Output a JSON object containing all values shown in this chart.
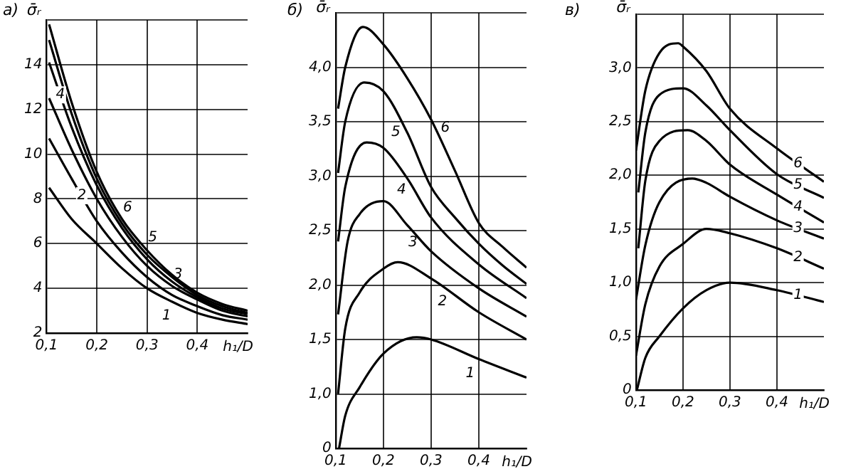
{
  "chart_data": [
    {
      "type": "line",
      "title": "а)",
      "ylabel": "σ̄ᵣ",
      "xlabel": "h₁/D",
      "grid": true,
      "legend": false,
      "marker": "none",
      "line_style": "solid",
      "x": [
        0.105,
        0.15,
        0.2,
        0.25,
        0.3,
        0.35,
        0.4,
        0.45,
        0.5
      ],
      "xlim": [
        0.1,
        0.5
      ],
      "xticks": [
        {
          "value": 0.1,
          "label": "0,1"
        },
        {
          "value": 0.2,
          "label": "0,2"
        },
        {
          "value": 0.3,
          "label": "0,3"
        },
        {
          "value": 0.4,
          "label": "0,4"
        }
      ],
      "ylim": [
        2,
        16
      ],
      "yticks": [
        2,
        4,
        6,
        8,
        10,
        12,
        14,
        {
          "value": 16,
          "label": null
        }
      ],
      "series": [
        {
          "name": "1",
          "color": "#000000",
          "values": [
            8.5,
            7.1,
            6.0,
            4.9,
            4.0,
            3.4,
            2.9,
            2.6,
            2.4
          ]
        },
        {
          "name": "2",
          "color": "#000000",
          "values": [
            10.7,
            8.9,
            7.0,
            5.6,
            4.5,
            3.7,
            3.2,
            2.8,
            2.6
          ]
        },
        {
          "name": "3",
          "color": "#000000",
          "values": [
            12.5,
            10.2,
            8.0,
            6.3,
            5.0,
            4.1,
            3.5,
            3.0,
            2.75
          ]
        },
        {
          "name": "4",
          "color": "#000000",
          "values": [
            14.1,
            11.2,
            8.6,
            6.7,
            5.3,
            4.3,
            3.6,
            3.1,
            2.85
          ]
        },
        {
          "name": "5",
          "color": "#000000",
          "values": [
            15.1,
            11.8,
            8.9,
            6.9,
            5.5,
            4.5,
            3.7,
            3.2,
            2.9
          ]
        },
        {
          "name": "6",
          "color": "#000000",
          "values": [
            15.8,
            12.3,
            9.2,
            7.1,
            5.7,
            4.6,
            3.8,
            3.3,
            3.0
          ]
        }
      ]
    },
    {
      "type": "line",
      "title": "б)",
      "ylabel": "σ̄ᵣ",
      "xlabel": "h₁/D",
      "grid": true,
      "legend": false,
      "marker": "none",
      "line_style": "solid",
      "xlim": [
        0.1,
        0.5
      ],
      "xticks": [
        {
          "value": 0.1,
          "label": "0,1"
        },
        {
          "value": 0.2,
          "label": "0,2"
        },
        {
          "value": 0.3,
          "label": "0,3"
        },
        {
          "value": 0.4,
          "label": "0,4"
        }
      ],
      "ylim": [
        0.5,
        4.5
      ],
      "yticks": [
        {
          "value": 0.5,
          "label": "0"
        },
        {
          "value": 1.0,
          "label": "1,0"
        },
        {
          "value": 1.5,
          "label": "1,5"
        },
        {
          "value": 2.0,
          "label": "2,0"
        },
        {
          "value": 2.5,
          "label": "2,5"
        },
        {
          "value": 3.0,
          "label": "3,0"
        },
        {
          "value": 3.5,
          "label": "3,5"
        },
        {
          "value": 4.0,
          "label": "4,0"
        },
        {
          "value": 4.5,
          "label": null
        }
      ],
      "series": [
        {
          "name": "1",
          "color": "#000000",
          "x": [
            0.107,
            0.12,
            0.15,
            0.2,
            0.27,
            0.3,
            0.4,
            0.5
          ],
          "values": [
            0.5,
            0.8,
            1.06,
            1.37,
            1.52,
            1.5,
            1.32,
            1.15
          ]
        },
        {
          "name": "2",
          "color": "#000000",
          "x": [
            0.105,
            0.12,
            0.15,
            0.2,
            0.23,
            0.3,
            0.4,
            0.5
          ],
          "values": [
            1.0,
            1.6,
            1.93,
            2.15,
            2.21,
            2.06,
            1.75,
            1.5
          ]
        },
        {
          "name": "3",
          "color": "#000000",
          "x": [
            0.105,
            0.125,
            0.15,
            0.2,
            0.25,
            0.3,
            0.4,
            0.5
          ],
          "values": [
            1.73,
            2.4,
            2.65,
            2.77,
            2.55,
            2.31,
            1.97,
            1.71
          ]
        },
        {
          "name": "4",
          "color": "#000000",
          "x": [
            0.105,
            0.12,
            0.165,
            0.2,
            0.25,
            0.3,
            0.4,
            0.5
          ],
          "values": [
            2.4,
            2.9,
            3.31,
            3.26,
            2.98,
            2.62,
            2.19,
            1.88
          ]
        },
        {
          "name": "5",
          "color": "#000000",
          "x": [
            0.105,
            0.12,
            0.16,
            0.2,
            0.25,
            0.3,
            0.35,
            0.4,
            0.45,
            0.5
          ],
          "values": [
            3.03,
            3.5,
            3.86,
            3.78,
            3.4,
            2.9,
            2.62,
            2.38,
            2.18,
            2.01
          ]
        },
        {
          "name": "6",
          "color": "#000000",
          "x": [
            0.105,
            0.12,
            0.157,
            0.2,
            0.25,
            0.3,
            0.35,
            0.4,
            0.45,
            0.5
          ],
          "values": [
            3.62,
            4.0,
            4.37,
            4.21,
            3.9,
            3.52,
            3.05,
            2.57,
            2.35,
            2.16
          ]
        }
      ]
    },
    {
      "type": "line",
      "title": "в)",
      "ylabel": "σ̄ᵣ",
      "xlabel": "h₁/D",
      "grid": true,
      "legend": false,
      "marker": "none",
      "line_style": "solid",
      "xlim": [
        0.1,
        0.5
      ],
      "xticks": [
        {
          "value": 0.1,
          "label": "0,1"
        },
        {
          "value": 0.2,
          "label": "0,2"
        },
        {
          "value": 0.3,
          "label": "0,3"
        },
        {
          "value": 0.4,
          "label": "0,4"
        }
      ],
      "ylim": [
        0,
        3.5
      ],
      "yticks": [
        0,
        {
          "value": 0.5,
          "label": "0,5"
        },
        {
          "value": 1.0,
          "label": "1,0"
        },
        {
          "value": 1.5,
          "label": "1,5"
        },
        {
          "value": 2.0,
          "label": "2,0"
        },
        {
          "value": 2.5,
          "label": "2,5"
        },
        {
          "value": 3.0,
          "label": "3,0"
        },
        {
          "value": 3.5,
          "label": null
        }
      ],
      "series": [
        {
          "name": "1",
          "color": "#000000",
          "x": [
            0.102,
            0.12,
            0.15,
            0.2,
            0.25,
            0.3,
            0.4,
            0.5
          ],
          "values": [
            0,
            0.3,
            0.5,
            0.76,
            0.93,
            1.0,
            0.93,
            0.82
          ]
        },
        {
          "name": "2",
          "color": "#000000",
          "x": [
            0.1,
            0.12,
            0.15,
            0.2,
            0.25,
            0.3,
            0.4,
            0.5
          ],
          "values": [
            0.32,
            0.8,
            1.15,
            1.36,
            1.5,
            1.46,
            1.32,
            1.13
          ]
        },
        {
          "name": "3",
          "color": "#000000",
          "x": [
            0.1,
            0.12,
            0.15,
            0.22,
            0.25,
            0.3,
            0.4,
            0.5
          ],
          "values": [
            0.84,
            1.35,
            1.75,
            1.97,
            1.93,
            1.8,
            1.58,
            1.41
          ]
        },
        {
          "name": "4",
          "color": "#000000",
          "x": [
            0.105,
            0.12,
            0.15,
            0.21,
            0.25,
            0.3,
            0.4,
            0.5
          ],
          "values": [
            1.32,
            1.95,
            2.32,
            2.42,
            2.32,
            2.1,
            1.82,
            1.56
          ]
        },
        {
          "name": "5",
          "color": "#000000",
          "x": [
            0.105,
            0.12,
            0.15,
            0.2,
            0.25,
            0.3,
            0.4,
            0.5
          ],
          "values": [
            1.84,
            2.4,
            2.75,
            2.81,
            2.65,
            2.42,
            2.01,
            1.79
          ]
        },
        {
          "name": "6",
          "color": "#000000",
          "x": [
            0.1,
            0.12,
            0.15,
            0.19,
            0.2,
            0.25,
            0.3,
            0.4,
            0.5
          ],
          "values": [
            2.23,
            2.79,
            3.14,
            3.23,
            3.2,
            2.97,
            2.62,
            2.25,
            1.94
          ]
        }
      ]
    }
  ]
}
